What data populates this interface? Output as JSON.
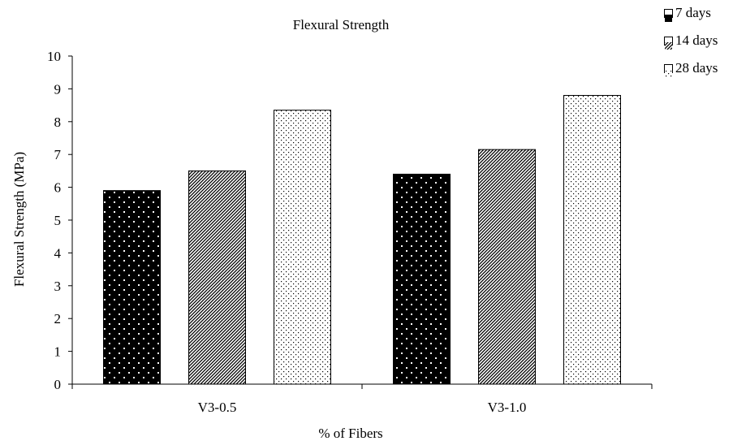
{
  "chart_data": {
    "type": "bar",
    "title": "Flexural Strength",
    "xlabel": "% of Fibers",
    "ylabel": "Flexural Strength (MPa)",
    "ylim": [
      0,
      10
    ],
    "yticks": [
      0,
      1,
      2,
      3,
      4,
      5,
      6,
      7,
      8,
      9,
      10
    ],
    "grid": false,
    "legend_position": "top-right",
    "categories": [
      "V3-0.5",
      "V3-1.0"
    ],
    "series": [
      {
        "name": "7 days",
        "values": [
          5.9,
          6.4
        ],
        "pattern": "dots-on-black"
      },
      {
        "name": "14 days",
        "values": [
          6.5,
          7.15
        ],
        "pattern": "diagonal-hatch"
      },
      {
        "name": "28 days",
        "values": [
          8.35,
          8.8
        ],
        "pattern": "fine-dots"
      }
    ]
  }
}
